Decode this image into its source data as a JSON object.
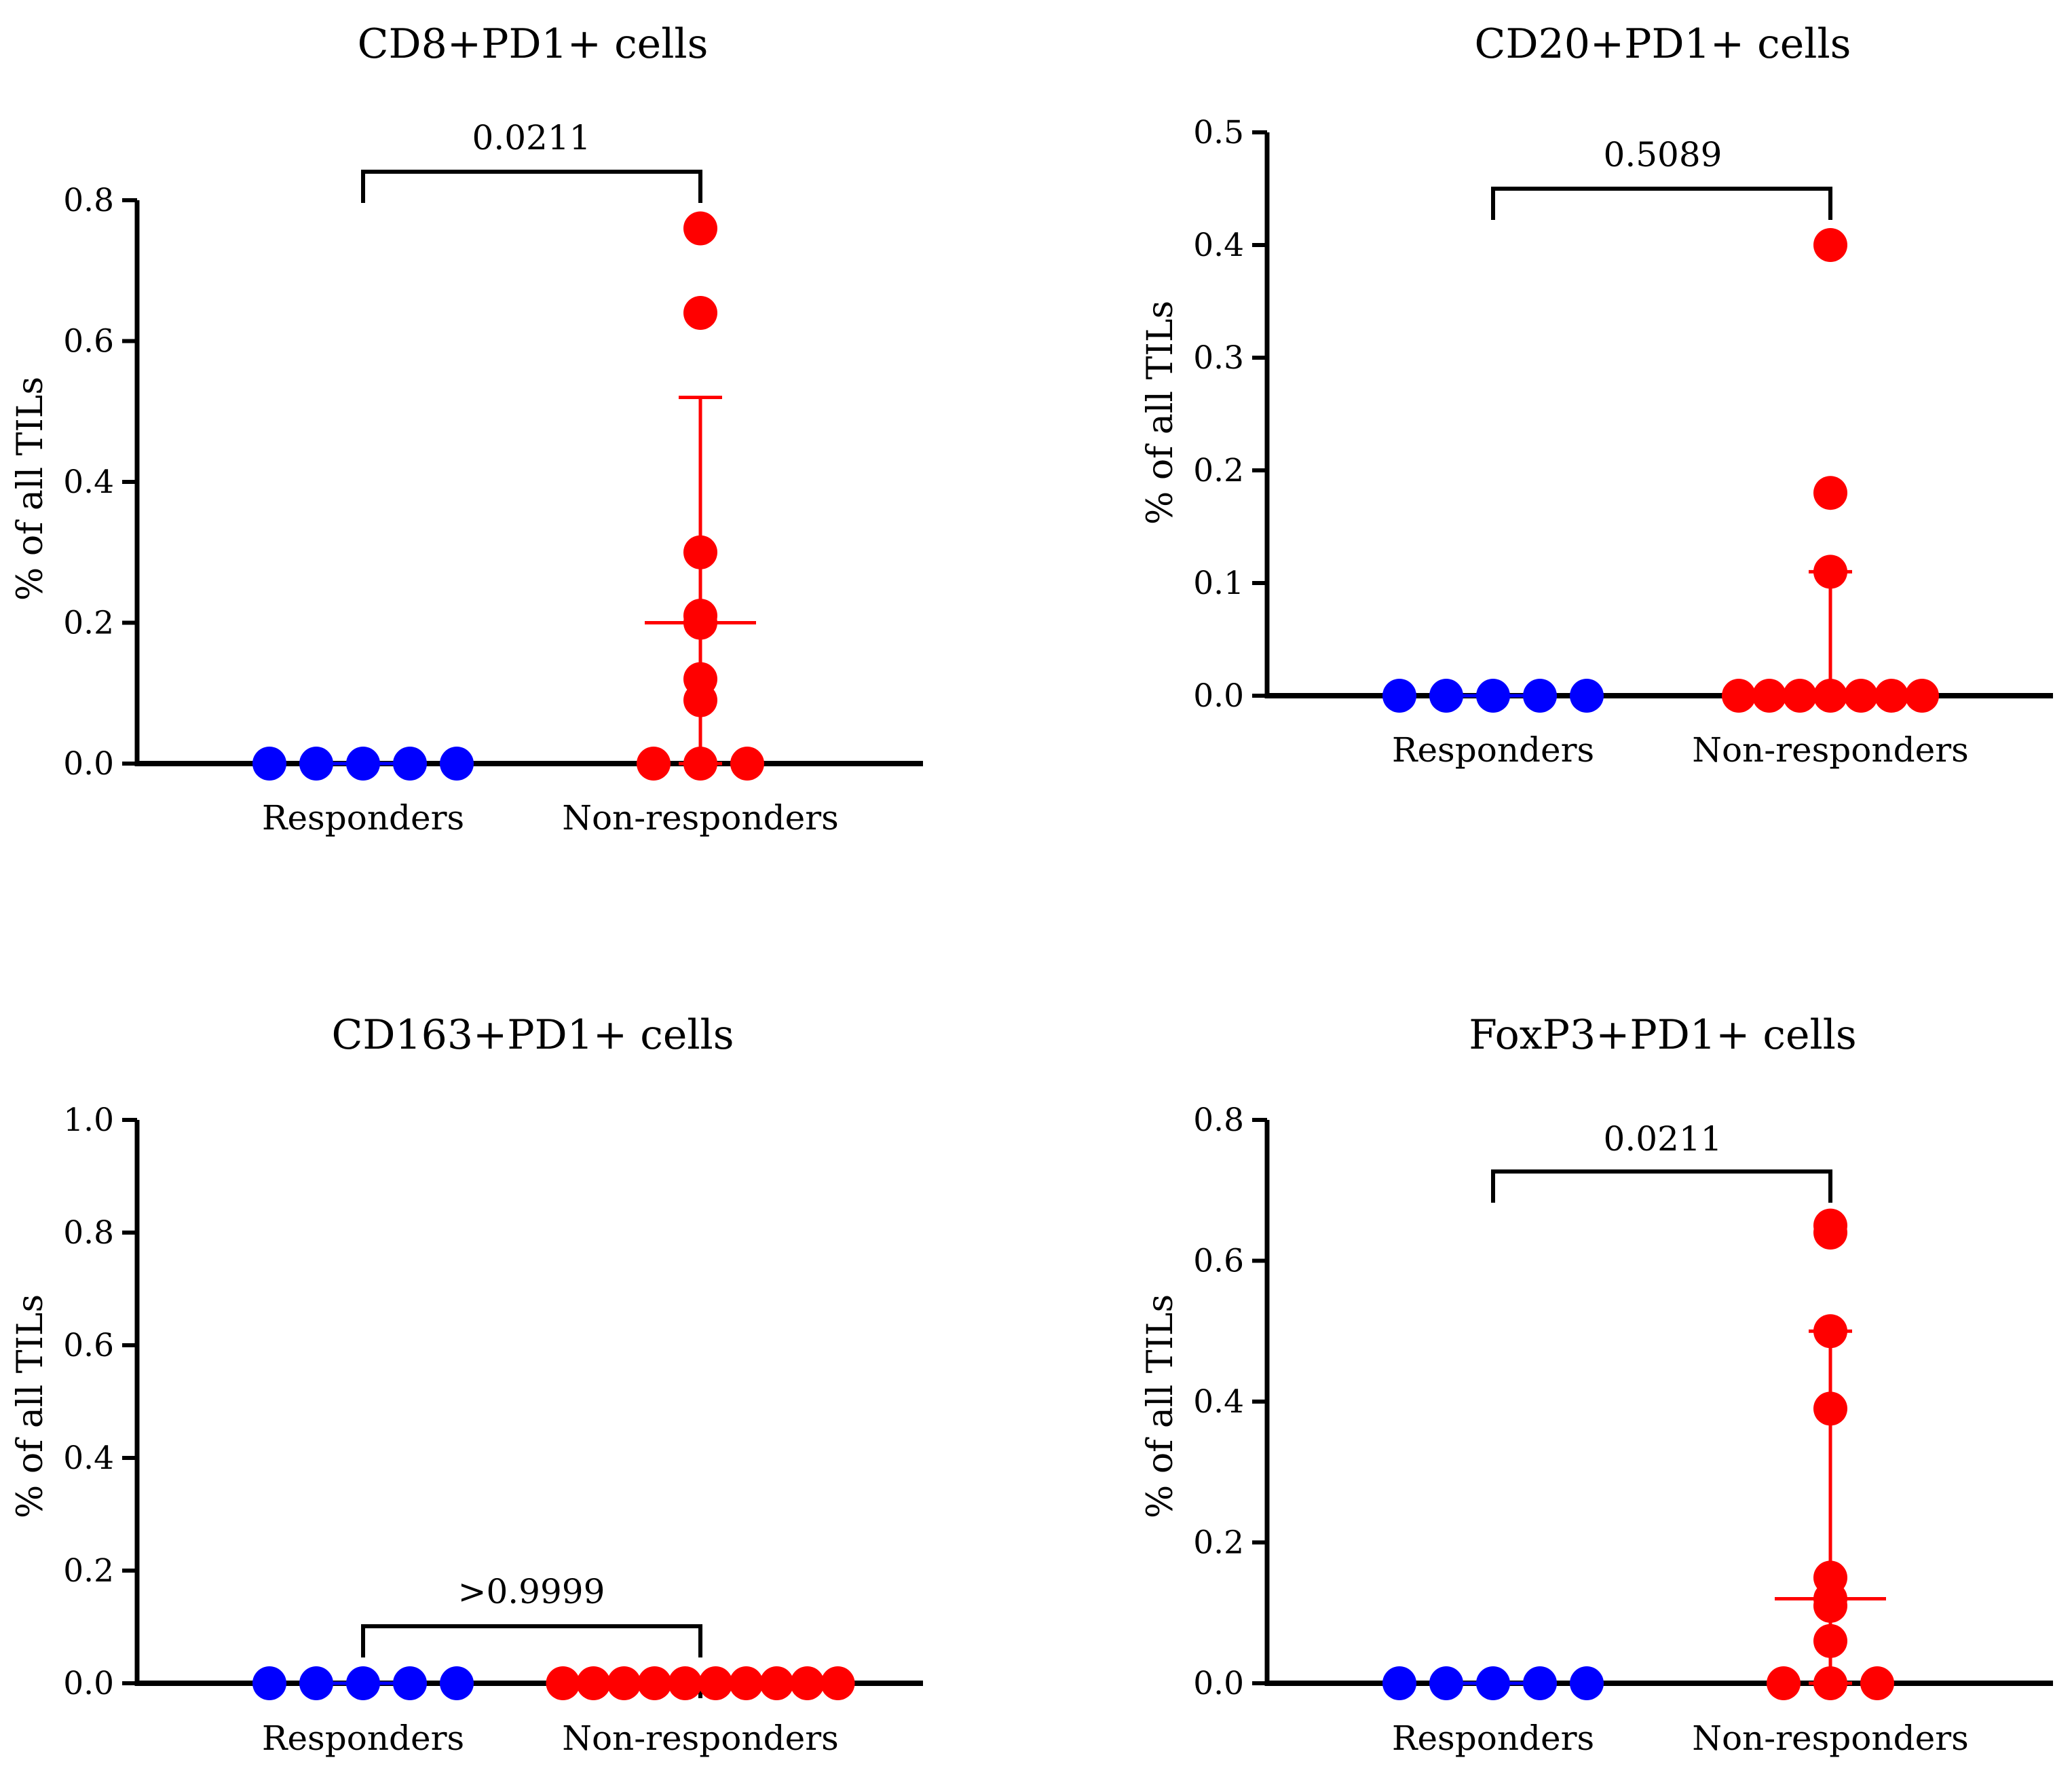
{
  "figure": {
    "colors": {
      "responders": "#0000ff",
      "non_responders": "#ff0000",
      "axis": "#000000"
    }
  },
  "chart_data": [
    {
      "type": "scatter",
      "title": "CD8+PD1+ cells",
      "xlabel": "",
      "ylabel": "% of all TILs",
      "categories": [
        "Responders",
        "Non-responders"
      ],
      "ylim": [
        0,
        0.8
      ],
      "yticks": [
        0.0,
        0.2,
        0.4,
        0.6,
        0.8
      ],
      "ytick_labels": [
        "0.0",
        "0.2",
        "0.4",
        "0.6",
        "0.8"
      ],
      "series": [
        {
          "name": "Responders",
          "values": [
            0,
            0,
            0,
            0,
            0
          ]
        },
        {
          "name": "Non-responders",
          "values": [
            0.76,
            0.64,
            0.3,
            0.21,
            0.2,
            0.12,
            0.09,
            0,
            0,
            0
          ],
          "median": 0.2,
          "q1": 0.0,
          "q3": 0.52
        }
      ],
      "pvalue": "0.0211",
      "pvalue_y": 0.84
    },
    {
      "type": "scatter",
      "title": "CD20+PD1+ cells",
      "xlabel": "",
      "ylabel": "% of all TILs",
      "categories": [
        "Responders",
        "Non-responders"
      ],
      "ylim": [
        0,
        0.5
      ],
      "yticks": [
        0.0,
        0.1,
        0.2,
        0.3,
        0.4,
        0.5
      ],
      "ytick_labels": [
        "0.0",
        "0.1",
        "0.2",
        "0.3",
        "0.4",
        "0.5"
      ],
      "series": [
        {
          "name": "Responders",
          "values": [
            0,
            0,
            0,
            0,
            0
          ]
        },
        {
          "name": "Non-responders",
          "values": [
            0.4,
            0.18,
            0.11,
            0,
            0,
            0,
            0,
            0,
            0,
            0
          ],
          "median": 0.0,
          "q1": 0.0,
          "q3": 0.11
        }
      ],
      "pvalue": "0.5089",
      "pvalue_y": 0.45
    },
    {
      "type": "scatter",
      "title": "CD163+PD1+ cells",
      "xlabel": "",
      "ylabel": "% of all TILs",
      "categories": [
        "Responders",
        "Non-responders"
      ],
      "ylim": [
        0,
        1.0
      ],
      "yticks": [
        0.0,
        0.2,
        0.4,
        0.6,
        0.8,
        1.0
      ],
      "ytick_labels": [
        "0.0",
        "0.2",
        "0.4",
        "0.6",
        "0.8",
        "1.0"
      ],
      "series": [
        {
          "name": "Responders",
          "values": [
            0,
            0,
            0,
            0,
            0
          ]
        },
        {
          "name": "Non-responders",
          "values": [
            0,
            0,
            0,
            0,
            0,
            0,
            0,
            0,
            0,
            0
          ],
          "median": 0.0,
          "q1": 0.0,
          "q3": 0.0
        }
      ],
      "pvalue": ">0.9999",
      "pvalue_y": 0.1
    },
    {
      "type": "scatter",
      "title": "FoxP3+PD1+ cells",
      "xlabel": "",
      "ylabel": "% of all TILs",
      "categories": [
        "Responders",
        "Non-responders"
      ],
      "ylim": [
        0,
        0.8
      ],
      "yticks": [
        0.0,
        0.2,
        0.4,
        0.6,
        0.8
      ],
      "ytick_labels": [
        "0.0",
        "0.2",
        "0.4",
        "0.6",
        "0.8"
      ],
      "series": [
        {
          "name": "Responders",
          "values": [
            0,
            0,
            0,
            0,
            0
          ]
        },
        {
          "name": "Non-responders",
          "values": [
            0.65,
            0.64,
            0.5,
            0.39,
            0.15,
            0.12,
            0.11,
            0.06,
            0,
            0,
            0
          ],
          "median": 0.12,
          "q1": 0.0,
          "q3": 0.5
        }
      ],
      "pvalue": "0.0211",
      "pvalue_y": 0.73
    }
  ]
}
